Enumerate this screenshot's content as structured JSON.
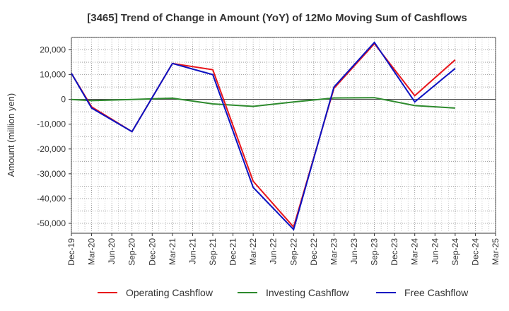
{
  "chart_data": {
    "type": "line",
    "title": "[3465]  Trend of Change in Amount (YoY) of 12Mo Moving Sum of Cashflows",
    "xlabel": "",
    "ylabel": "Amount (million yen)",
    "ylim": [
      -54000,
      25000
    ],
    "yticks": [
      20000,
      10000,
      0,
      -10000,
      -20000,
      -30000,
      -40000,
      -50000
    ],
    "ytick_labels": [
      "20,000",
      "10,000",
      "0",
      "-10,000",
      "-20,000",
      "-30,000",
      "-40,000",
      "-50,000"
    ],
    "categories": [
      "Dec-19",
      "Mar-20",
      "Jun-20",
      "Sep-20",
      "Dec-20",
      "Mar-21",
      "Jun-21",
      "Sep-21",
      "Dec-21",
      "Mar-22",
      "Jun-22",
      "Sep-22",
      "Dec-22",
      "Mar-23",
      "Jun-23",
      "Sep-23",
      "Dec-23",
      "Mar-24",
      "Jun-24",
      "Sep-24",
      "Dec-24",
      "Mar-25"
    ],
    "grid": true,
    "legend_position": "bottom",
    "series": [
      {
        "name": "Operating Cashflow",
        "color": "#e8151b",
        "values": [
          10500,
          -3000,
          null,
          -13000,
          null,
          14500,
          null,
          12000,
          null,
          -33000,
          null,
          -51500,
          null,
          4500,
          null,
          22500,
          null,
          1500,
          null,
          16000,
          null,
          null
        ]
      },
      {
        "name": "Investing Cashflow",
        "color": "#2d8a2d",
        "values": [
          0,
          -500,
          null,
          0,
          null,
          500,
          null,
          -1800,
          null,
          -2800,
          null,
          -1000,
          null,
          600,
          null,
          700,
          null,
          -2500,
          null,
          -3500,
          null,
          null
        ]
      },
      {
        "name": "Free Cashflow",
        "color": "#0c12c2",
        "values": [
          10500,
          -3500,
          null,
          -13000,
          null,
          14500,
          null,
          10000,
          null,
          -35500,
          null,
          -52500,
          null,
          5000,
          null,
          23000,
          null,
          -1000,
          null,
          12500,
          null,
          null
        ]
      }
    ]
  }
}
